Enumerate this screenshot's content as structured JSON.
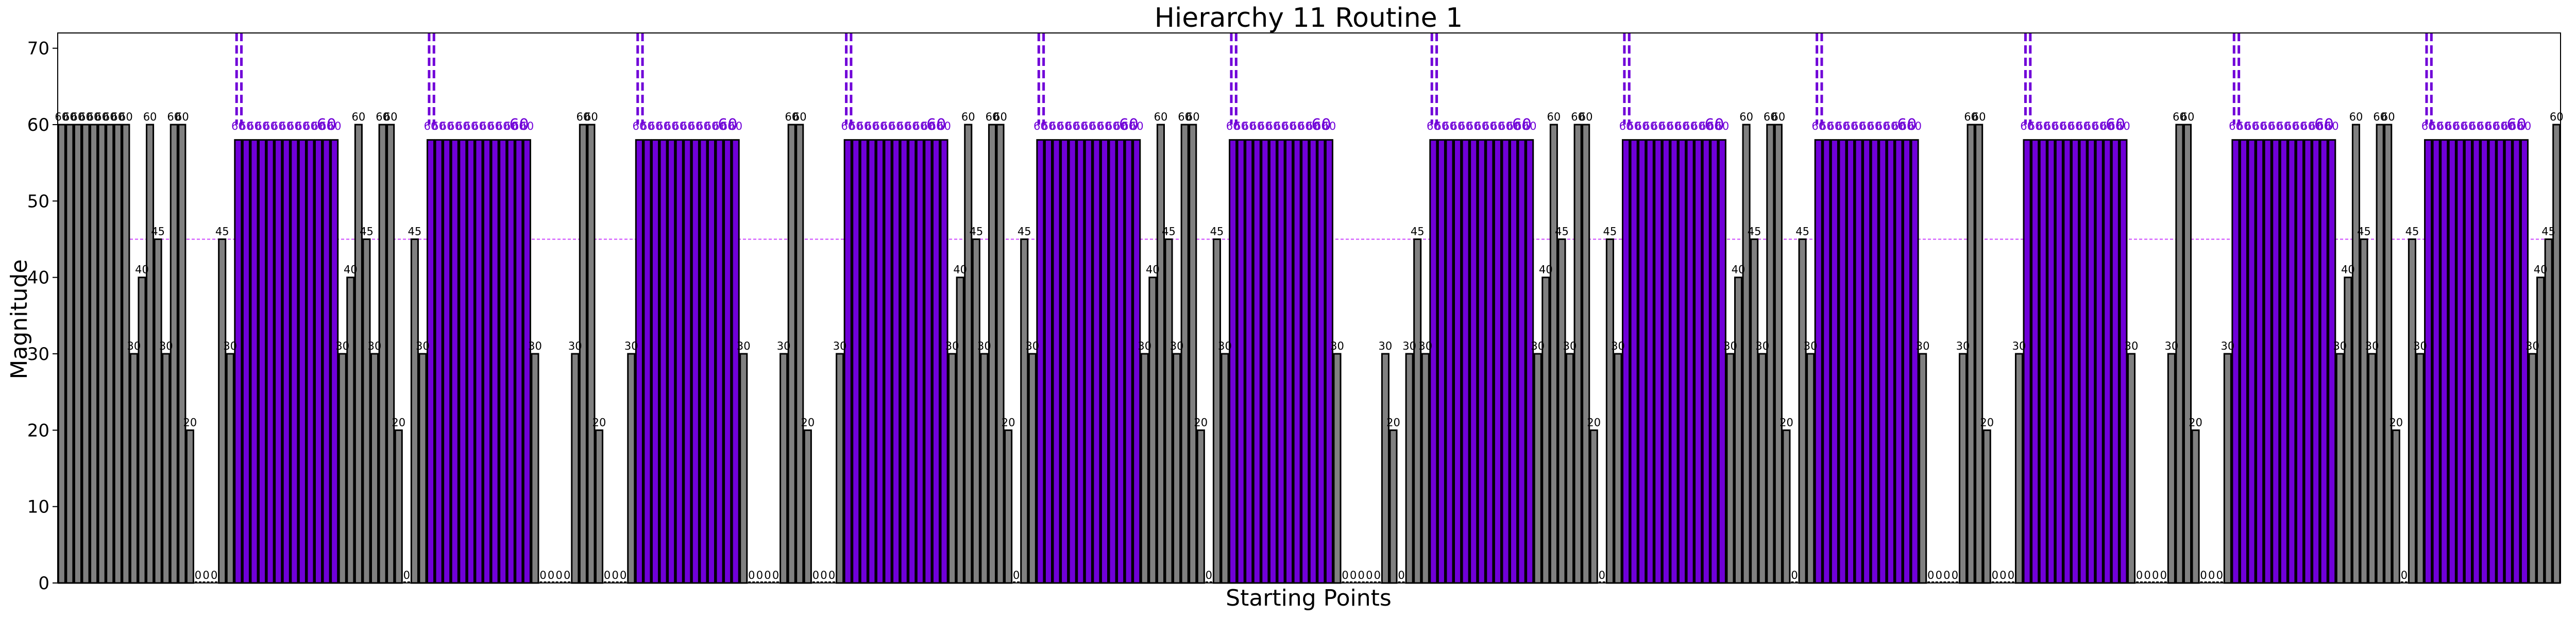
{
  "chart_data": {
    "type": "bar",
    "title": "Hierarchy 11 Routine 1",
    "xlabel": "Starting Points",
    "ylabel": "Magnitude",
    "ylim": [
      0,
      72
    ],
    "yticks": [
      0,
      10,
      20,
      30,
      40,
      50,
      60,
      70
    ],
    "grid": false,
    "legend": "none",
    "colors": {
      "normal": "#808080",
      "highlight": "#7000d8",
      "outline": "#000000",
      "threshold": "#cc44ff",
      "marker": "#7000d8"
    },
    "threshold": 45,
    "values": [
      60,
      60,
      60,
      60,
      60,
      60,
      60,
      60,
      60,
      30,
      40,
      60,
      45,
      30,
      60,
      60,
      20,
      0,
      0,
      0,
      45,
      30,
      58,
      58,
      58,
      58,
      58,
      58,
      58,
      58,
      58,
      58,
      58,
      58,
      58,
      30,
      40,
      60,
      45,
      30,
      60,
      60,
      20,
      0,
      45,
      30,
      58,
      58,
      58,
      58,
      58,
      58,
      58,
      58,
      58,
      58,
      58,
      58,
      58,
      30,
      0,
      0,
      0,
      0,
      30,
      60,
      60,
      20,
      0,
      0,
      0,
      30,
      58,
      58,
      58,
      58,
      58,
      58,
      58,
      58,
      58,
      58,
      58,
      58,
      58,
      30,
      0,
      0,
      0,
      0,
      30,
      60,
      60,
      20,
      0,
      0,
      0,
      30,
      58,
      58,
      58,
      58,
      58,
      58,
      58,
      58,
      58,
      58,
      58,
      58,
      58,
      30,
      40,
      60,
      45,
      30,
      60,
      60,
      20,
      0,
      45,
      30,
      58,
      58,
      58,
      58,
      58,
      58,
      58,
      58,
      58,
      58,
      58,
      58,
      58,
      30,
      40,
      60,
      45,
      30,
      60,
      60,
      20,
      0,
      45,
      30,
      58,
      58,
      58,
      58,
      58,
      58,
      58,
      58,
      58,
      58,
      58,
      58,
      58,
      30,
      0,
      0,
      0,
      0,
      0,
      30,
      20,
      0,
      30,
      45,
      30,
      58,
      58,
      58,
      58,
      58,
      58,
      58,
      58,
      58,
      58,
      58,
      58,
      58,
      30,
      40,
      60,
      45,
      30,
      60,
      60,
      20,
      0,
      45,
      30,
      58,
      58,
      58,
      58,
      58,
      58,
      58,
      58,
      58,
      58,
      58,
      58,
      58,
      30,
      40,
      60,
      45,
      30,
      60,
      60,
      20,
      0,
      45,
      30,
      58,
      58,
      58,
      58,
      58,
      58,
      58,
      58,
      58,
      58,
      58,
      58,
      58,
      30,
      0,
      0,
      0,
      0,
      30,
      60,
      60,
      20,
      0,
      0,
      0,
      30,
      58,
      58,
      58,
      58,
      58,
      58,
      58,
      58,
      58,
      58,
      58,
      58,
      58,
      30,
      0,
      0,
      0,
      0,
      30,
      60,
      60,
      20,
      0,
      0,
      0,
      30,
      58,
      58,
      58,
      58,
      58,
      58,
      58,
      58,
      58,
      58,
      58,
      58,
      58,
      30,
      40,
      60,
      45,
      30,
      60,
      60,
      20,
      0,
      45,
      30,
      58,
      58,
      58,
      58,
      58,
      58,
      58,
      58,
      58,
      58,
      58,
      58,
      58,
      30,
      40,
      45,
      60
    ],
    "highlight_groups": [
      [
        22,
        34
      ],
      [
        46,
        58
      ],
      [
        72,
        84
      ],
      [
        98,
        110
      ],
      [
        122,
        134
      ],
      [
        146,
        158
      ],
      [
        171,
        183
      ],
      [
        195,
        207
      ],
      [
        219,
        231
      ],
      [
        245,
        257
      ],
      [
        271,
        283
      ],
      [
        295,
        307
      ]
    ],
    "group_label": "60"
  }
}
